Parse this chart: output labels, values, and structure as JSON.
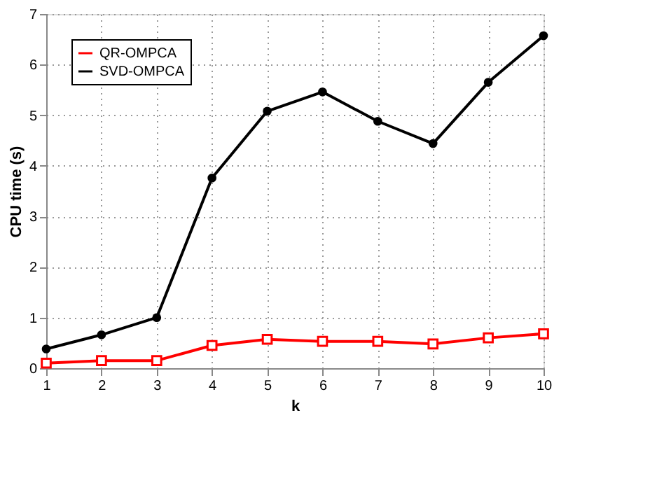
{
  "chart_data": {
    "type": "line",
    "xlabel": "k",
    "ylabel": "CPU time (s)",
    "x": [
      1,
      2,
      3,
      4,
      5,
      6,
      7,
      8,
      9,
      10
    ],
    "series": [
      {
        "name": "QR-OMPCA",
        "color": "#ff0000",
        "marker": "square",
        "values": [
          0.1,
          0.15,
          0.15,
          0.45,
          0.57,
          0.53,
          0.53,
          0.48,
          0.6,
          0.68
        ]
      },
      {
        "name": "SVD-OMPCA",
        "color": "#000000",
        "marker": "circle",
        "values": [
          0.38,
          0.66,
          1.0,
          3.76,
          5.08,
          5.46,
          4.88,
          4.44,
          5.65,
          6.57
        ]
      }
    ],
    "xlim": [
      1,
      10
    ],
    "ylim": [
      0,
      7
    ],
    "xticks": [
      1,
      2,
      3,
      4,
      5,
      6,
      7,
      8,
      9,
      10
    ],
    "yticks": [
      0,
      1,
      2,
      3,
      4,
      5,
      6,
      7
    ],
    "grid": true,
    "legend": "top left",
    "line_style": "solid"
  }
}
